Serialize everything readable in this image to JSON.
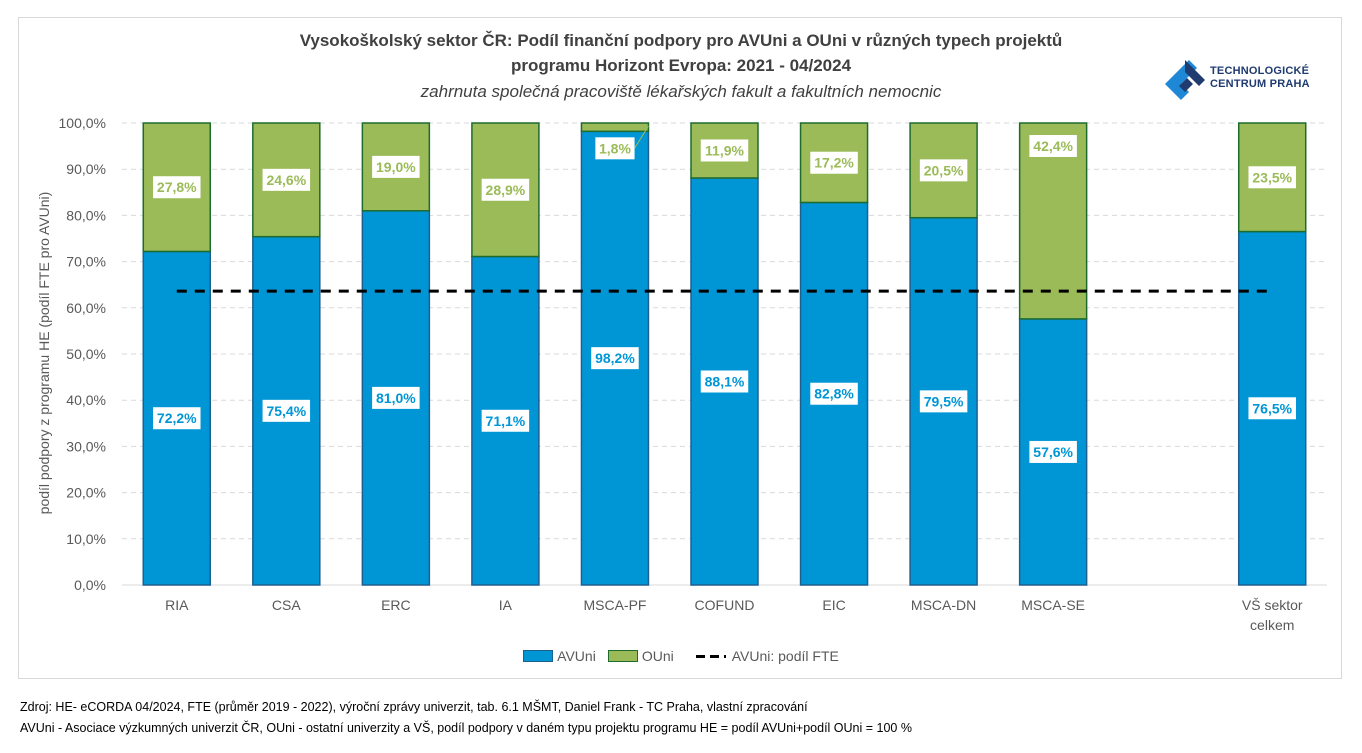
{
  "chart_data": {
    "type": "bar",
    "stacked": true,
    "percent_stacked": true,
    "title": "Vysokoškolský sektor ČR: Podíl finanční podpory pro AVUni a OUni v různých typech projektů programu Horizont Evropa: 2021 - 04/2024",
    "title_line1": "Vysokoškolský sektor ČR: Podíl finanční podpory pro AVUni a OUni v různých typech projektů",
    "title_line2": "programu Horizont Evropa: 2021 - 04/2024",
    "subtitle": "zahrnuta společná pracoviště lékařských fakult a fakultních nemocnic",
    "xlabel": "",
    "ylabel": "podíl podpory z programu HE (podíl FTE pro AVUni)",
    "ylim": [
      0,
      100
    ],
    "yticks": [
      "0,0%",
      "10,0%",
      "20,0%",
      "30,0%",
      "40,0%",
      "50,0%",
      "60,0%",
      "70,0%",
      "80,0%",
      "90,0%",
      "100,0%"
    ],
    "grid": true,
    "categories": [
      "RIA",
      "CSA",
      "ERC",
      "IA",
      "MSCA-PF",
      "COFUND",
      "EIC",
      "MSCA-DN",
      "MSCA-SE",
      "",
      "VŠ sektor celkem"
    ],
    "category_label_lines": [
      [
        "RIA"
      ],
      [
        "CSA"
      ],
      [
        "ERC"
      ],
      [
        "IA"
      ],
      [
        "MSCA-PF"
      ],
      [
        "COFUND"
      ],
      [
        "EIC"
      ],
      [
        "MSCA-DN"
      ],
      [
        "MSCA-SE"
      ],
      [
        ""
      ],
      [
        "VŠ sektor",
        "celkem"
      ]
    ],
    "series": [
      {
        "name": "AVUni",
        "color": "#0096d6",
        "values": [
          72.2,
          75.4,
          81.0,
          71.1,
          98.2,
          88.1,
          82.8,
          79.5,
          57.6,
          null,
          76.5
        ],
        "labels": [
          "72,2%",
          "75,4%",
          "81,0%",
          "71,1%",
          "98,2%",
          "88,1%",
          "82,8%",
          "79,5%",
          "57,6%",
          "",
          "76,5%"
        ]
      },
      {
        "name": "OUni",
        "color": "#9bbb59",
        "values": [
          27.8,
          24.6,
          19.0,
          28.9,
          1.8,
          11.9,
          17.2,
          20.5,
          42.4,
          null,
          23.5
        ],
        "labels": [
          "27,8%",
          "24,6%",
          "19,0%",
          "28,9%",
          "1,8%",
          "11,9%",
          "17,2%",
          "20,5%",
          "42,4%",
          "",
          "23,5%"
        ]
      }
    ],
    "reference_line": {
      "name": "AVUni: podíl FTE",
      "value": 63.6,
      "style": "dashed",
      "color": "#000000"
    },
    "legend": {
      "position": "bottom",
      "entries": [
        "AVUni",
        "OUni",
        "AVUni: podíl FTE"
      ]
    }
  },
  "logo": {
    "line1": "TECHNOLOGICKÉ",
    "line2": "CENTRUM PRAHA"
  },
  "notes": {
    "source": "Zdroj: HE- eCORDA 04/2024,  FTE (průměr 2019 - 2022), výroční zprávy univerzit, tab. 6.1 MŠMT, Daniel Frank - TC Praha, vlastní zpracování",
    "definitions": "AVUni - Asociace výzkumných univerzit ČR, OUni - ostatní univerzity a VŠ, podíl podpory v daném typu projektu programu HE = podíl AVUni+podíl OUni = 100 %"
  }
}
